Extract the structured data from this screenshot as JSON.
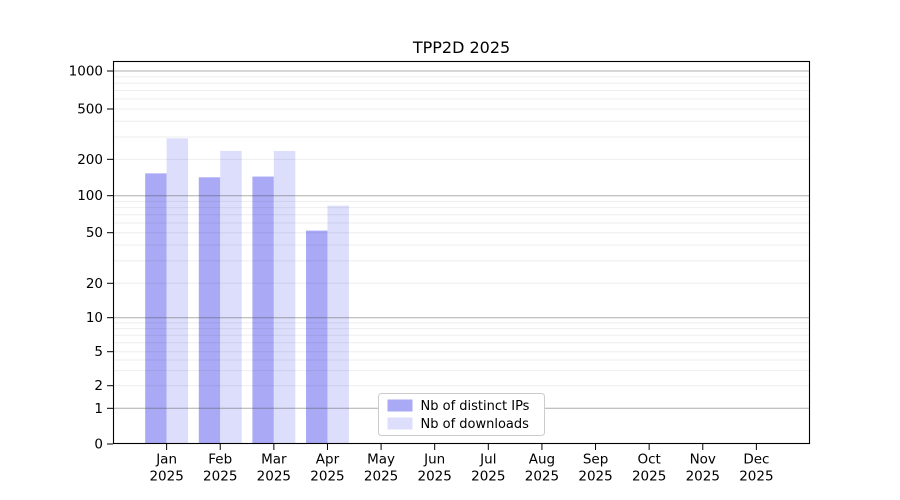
{
  "chart_data": {
    "type": "bar",
    "title": "TPP2D 2025",
    "categories": [
      "Jan",
      "Feb",
      "Mar",
      "Apr",
      "May",
      "Jun",
      "Jul",
      "Aug",
      "Sep",
      "Oct",
      "Nov",
      "Dec"
    ],
    "year_label": "2025",
    "series": [
      {
        "name": "Nb of distinct IPs",
        "color": "#a9a9f6",
        "values": [
          153,
          142,
          144,
          52,
          0,
          0,
          0,
          0,
          0,
          0,
          0,
          0
        ]
      },
      {
        "name": "Nb of downloads",
        "color": "#dcdefb",
        "values": [
          293,
          233,
          233,
          83,
          0,
          0,
          0,
          0,
          0,
          0,
          0,
          0
        ]
      }
    ],
    "xlabel": "",
    "ylabel": "",
    "y_axis": {
      "scale": "symlog",
      "ticks": [
        0,
        1,
        2,
        5,
        10,
        20,
        50,
        100,
        200,
        500,
        1000
      ],
      "top_value": 1200
    },
    "grid": {
      "horizontal": true,
      "vertical": false,
      "major_at": [
        1,
        10,
        100,
        1000
      ]
    },
    "legend": {
      "position": "inside-bottom-center",
      "labels": [
        "Nb of distinct IPs",
        "Nb of downloads"
      ]
    },
    "colors": {
      "background": "#ffffff",
      "axis": "#000000",
      "major_grid": "#b9b9b9",
      "minor_grid": "#efefef",
      "legend_border": "#cccccc",
      "tick_label": "#000000"
    }
  }
}
